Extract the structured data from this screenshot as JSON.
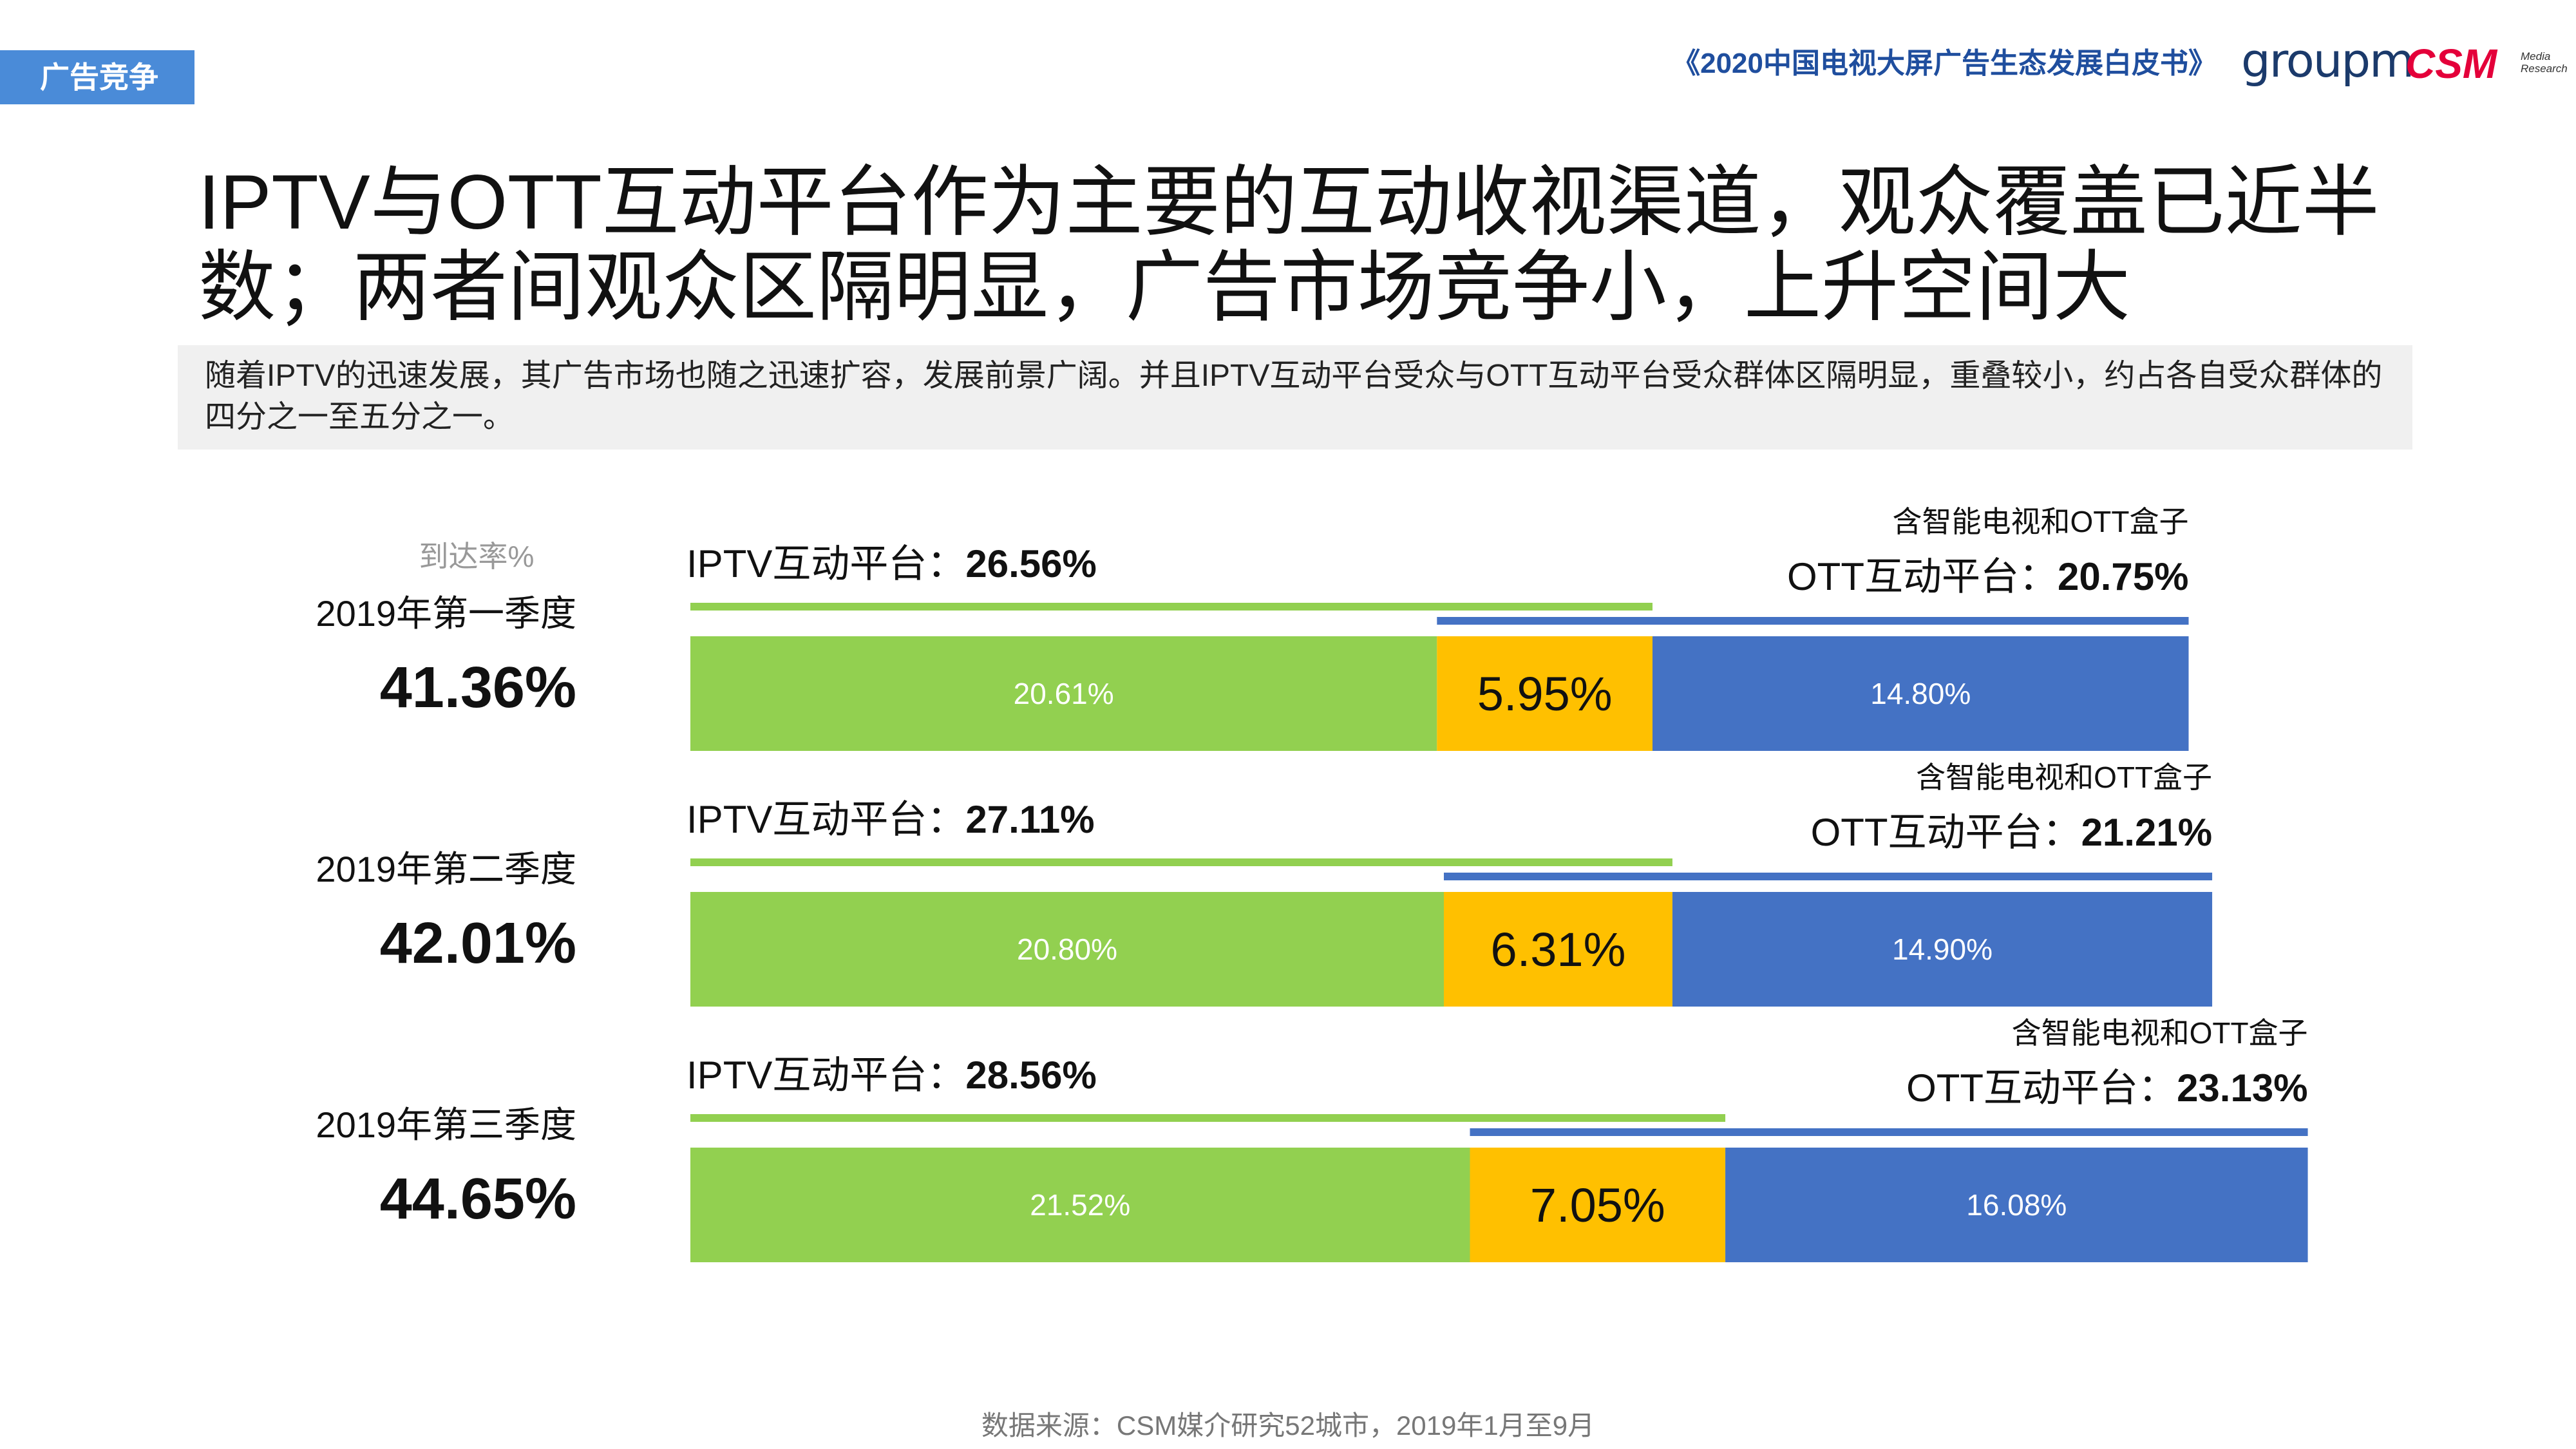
{
  "header": {
    "tag": "广告竞争",
    "report_title": "《2020中国电视大屏广告生态发展白皮书》",
    "logo_groupm": "groupm",
    "logo_csm": "CSM",
    "logo_csm_sub": "Media Research"
  },
  "headline": "IPTV与OTT互动平台作为主要的互动收视渠道，观众覆盖已近半数；两者间观众区隔明显，广告市场竞争小，上升空间大",
  "summary": "随着IPTV的迅速发展，其广告市场也随之迅速扩容，发展前景广阔。并且IPTV互动平台受众与OTT互动平台受众群体区隔明显，重叠较小，约占各自受众群体的四分之一至五分之一。",
  "source": "数据来源：CSM媒介研究52城市，2019年1月至9月",
  "colors": {
    "iptv_only": "#92d050",
    "overlap": "#ffc000",
    "ott_only": "#4472c4",
    "tag_bg": "#4a8bd8"
  },
  "chart_data": {
    "type": "bar",
    "stacked": true,
    "orientation": "horizontal",
    "reach_label": "到达率%",
    "iptv_label": "IPTV互动平台：",
    "ott_note": "含智能电视和OTT盒子",
    "ott_label": "OTT互动平台：",
    "categories": [
      "2019年第一季度",
      "2019年第二季度",
      "2019年第三季度"
    ],
    "total_reach": [
      "41.36%",
      "42.01%",
      "44.65%"
    ],
    "iptv_total": [
      "26.56%",
      "27.11%",
      "28.56%"
    ],
    "ott_total": [
      "20.75%",
      "21.21%",
      "23.13%"
    ],
    "series": [
      {
        "key": "iptv_only",
        "values": [
          20.61,
          20.8,
          21.52
        ]
      },
      {
        "key": "overlap",
        "values": [
          5.95,
          6.31,
          7.05
        ]
      },
      {
        "key": "ott_only",
        "values": [
          14.8,
          14.9,
          16.08
        ]
      }
    ]
  }
}
